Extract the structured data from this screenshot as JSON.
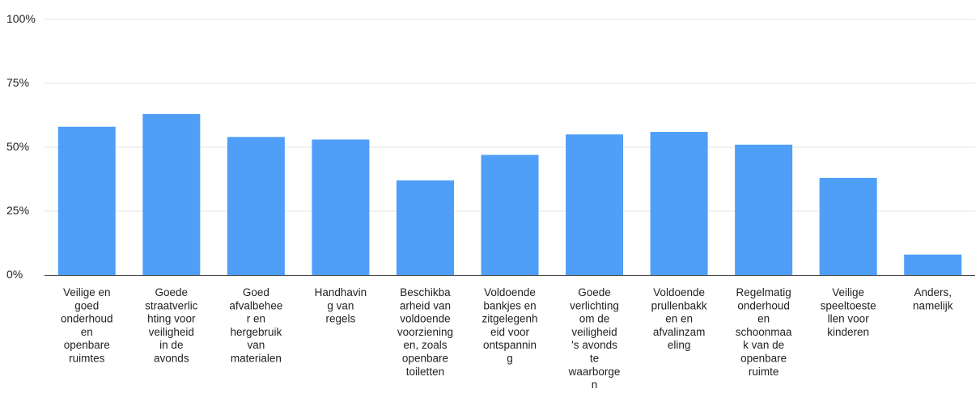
{
  "chart_data": {
    "type": "bar",
    "categories": [
      [
        "Veilige en",
        "goed",
        "onderhoud",
        "en",
        "openbare",
        "ruimtes"
      ],
      [
        "Goede",
        "straatverlic",
        "hting voor",
        "veiligheid",
        "in de",
        "avonds"
      ],
      [
        "Goed",
        "afvalbehee",
        "r en",
        "hergebruik",
        "van",
        "materialen"
      ],
      [
        "Handhavin",
        "g van",
        "regels"
      ],
      [
        "Beschikba",
        "arheid van",
        "voldoende",
        "voorziening",
        "en, zoals",
        "openbare",
        "toiletten"
      ],
      [
        "Voldoende",
        "bankjes en",
        "zitgelegenh",
        "eid voor",
        "ontspannin",
        "g"
      ],
      [
        "Goede",
        "verlichting",
        "om de",
        "veiligheid",
        "'s avonds",
        "te",
        "waarborge",
        "n"
      ],
      [
        "Voldoende",
        "prullenbakk",
        "en en",
        "afvalinzam",
        "eling"
      ],
      [
        "Regelmatig",
        "onderhoud",
        "en",
        "schoonmaa",
        "k van de",
        "openbare",
        "ruimte"
      ],
      [
        "Veilige",
        "speeltoeste",
        "llen voor",
        "kinderen"
      ],
      [
        "Anders,",
        "namelijk"
      ]
    ],
    "values": [
      58,
      63,
      54,
      53,
      37,
      47,
      55,
      56,
      51,
      38,
      8
    ],
    "ylim": [
      0,
      100
    ],
    "yticks": [
      0,
      25,
      50,
      75,
      100
    ],
    "ytick_labels": [
      "0%",
      "25%",
      "50%",
      "75%",
      "100%"
    ],
    "grid": true,
    "bar_color": "#4f9ef8",
    "grid_color": "#e6e6e6",
    "axis_color": "#444444"
  }
}
